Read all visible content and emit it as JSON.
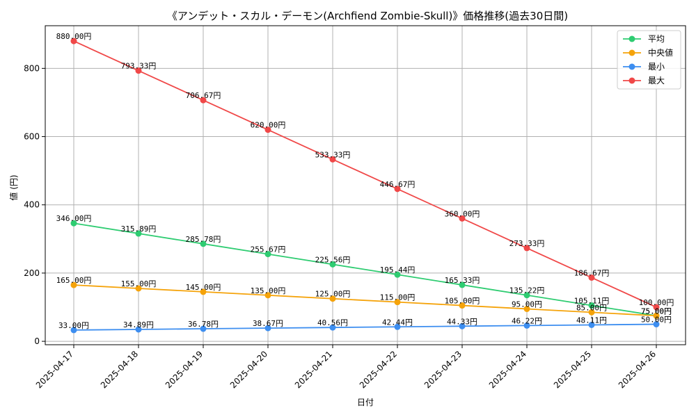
{
  "chart_data": {
    "type": "line",
    "title": "《アンデット・スカル・デーモン(Archfiend Zombie-Skull)》価格推移(過去30日間)",
    "xlabel": "日付",
    "ylabel": "値 (円)",
    "ylim": [
      -10,
      925
    ],
    "yticks": [
      0,
      200,
      400,
      600,
      800
    ],
    "grid": true,
    "legend_position": "top-right",
    "categories": [
      "2025-04-17",
      "2025-04-18",
      "2025-04-19",
      "2025-04-20",
      "2025-04-21",
      "2025-04-22",
      "2025-04-23",
      "2025-04-24",
      "2025-04-25",
      "2025-04-26"
    ],
    "series": [
      {
        "name": "平均",
        "color": "#2ecc71",
        "values": [
          346.0,
          315.89,
          285.78,
          255.67,
          225.56,
          195.44,
          165.33,
          135.22,
          105.11,
          75.0
        ],
        "labels": [
          "346.00円",
          "315.89円",
          "285.78円",
          "255.67円",
          "225.56円",
          "195.44円",
          "165.33円",
          "135.22円",
          "105.11円",
          "75.00円"
        ]
      },
      {
        "name": "中央値",
        "color": "#f5a30a",
        "values": [
          165.0,
          155.0,
          145.0,
          135.0,
          125.0,
          115.0,
          105.0,
          95.0,
          85.0,
          75.0
        ],
        "labels": [
          "165.00円",
          "155.00円",
          "145.00円",
          "135.00円",
          "125.00円",
          "115.00円",
          "105.00円",
          "95.00円",
          "85.00円",
          "75.00円"
        ]
      },
      {
        "name": "最小",
        "color": "#3d8ef0",
        "values": [
          33.0,
          34.89,
          36.78,
          38.67,
          40.56,
          42.44,
          44.33,
          46.22,
          48.11,
          50.0
        ],
        "labels": [
          "33.00円",
          "34.89円",
          "36.78円",
          "38.67円",
          "40.56円",
          "42.44円",
          "44.33円",
          "46.22円",
          "48.11円",
          "50.00円"
        ]
      },
      {
        "name": "最大",
        "color": "#f04848",
        "values": [
          880.0,
          793.33,
          706.67,
          620.0,
          533.33,
          446.67,
          360.0,
          273.33,
          186.67,
          100.0
        ],
        "labels": [
          "880.00円",
          "793.33円",
          "706.67円",
          "620.00円",
          "533.33円",
          "446.67円",
          "360.00円",
          "273.33円",
          "186.67円",
          "100.00円"
        ]
      }
    ]
  }
}
